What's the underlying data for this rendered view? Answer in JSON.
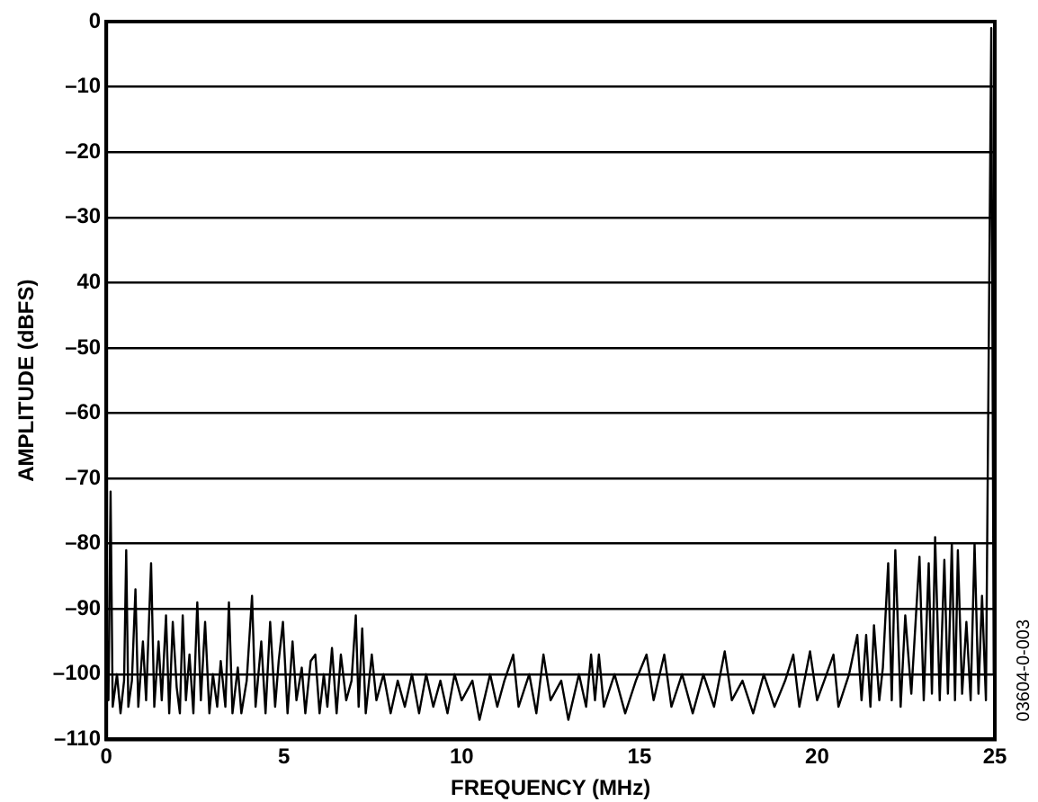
{
  "chart_data": {
    "type": "line",
    "xlabel": "FREQUENCY (MHz)",
    "ylabel": "AMPLITUDE (dBFS)",
    "xlim": [
      0,
      25
    ],
    "xticks": [
      0,
      5,
      10,
      15,
      20,
      25
    ],
    "ylim": [
      -110,
      0
    ],
    "yticks": [
      0,
      {
        "value": -10,
        "label": "–10"
      },
      {
        "value": -20,
        "label": "–20"
      },
      {
        "value": -30,
        "label": "–30"
      },
      {
        "value": -40,
        "label": "40"
      },
      {
        "value": -50,
        "label": "–50"
      },
      {
        "value": -60,
        "label": "–60"
      },
      {
        "value": -70,
        "label": "–70"
      },
      {
        "value": -80,
        "label": "–80"
      },
      {
        "value": -90,
        "label": "–90"
      },
      {
        "value": -100,
        "label": "–100"
      },
      {
        "value": -110,
        "label": "–110"
      }
    ],
    "grid": "y",
    "marker": "none",
    "line_style": "solid",
    "annotations": [
      "03604-0-003"
    ],
    "series": [
      {
        "color": "#000000",
        "x": [
          0,
          0.06,
          0.12,
          0.18,
          0.3,
          0.4,
          0.5,
          0.56,
          0.62,
          0.72,
          0.82,
          0.9,
          1.03,
          1.12,
          1.26,
          1.35,
          1.47,
          1.56,
          1.68,
          1.77,
          1.87,
          1.98,
          2.07,
          2.15,
          2.24,
          2.34,
          2.45,
          2.56,
          2.66,
          2.78,
          2.9,
          3.0,
          3.12,
          3.22,
          3.35,
          3.45,
          3.55,
          3.7,
          3.8,
          3.95,
          4.1,
          4.2,
          4.36,
          4.48,
          4.61,
          4.75,
          4.85,
          4.97,
          5.1,
          5.24,
          5.35,
          5.5,
          5.6,
          5.75,
          5.88,
          6.0,
          6.12,
          6.22,
          6.35,
          6.48,
          6.6,
          6.75,
          6.9,
          7.02,
          7.1,
          7.2,
          7.3,
          7.47,
          7.6,
          7.8,
          8.0,
          8.2,
          8.4,
          8.6,
          8.8,
          9.0,
          9.2,
          9.4,
          9.6,
          9.8,
          10.0,
          10.3,
          10.5,
          10.8,
          11.0,
          11.2,
          11.45,
          11.6,
          11.9,
          12.1,
          12.3,
          12.5,
          12.8,
          13.0,
          13.3,
          13.5,
          13.64,
          13.75,
          13.86,
          14.0,
          14.3,
          14.6,
          14.9,
          15.2,
          15.4,
          15.7,
          15.9,
          16.2,
          16.5,
          16.8,
          17.1,
          17.4,
          17.6,
          17.9,
          18.2,
          18.5,
          18.8,
          19.1,
          19.33,
          19.5,
          19.8,
          20.0,
          20.2,
          20.46,
          20.6,
          20.9,
          21.13,
          21.25,
          21.38,
          21.5,
          21.6,
          21.75,
          21.85,
          22.0,
          22.1,
          22.2,
          22.35,
          22.48,
          22.65,
          22.88,
          23.0,
          23.14,
          23.23,
          23.32,
          23.45,
          23.58,
          23.68,
          23.79,
          23.88,
          23.96,
          24.08,
          24.2,
          24.32,
          24.43,
          24.54,
          24.64,
          24.75,
          24.9,
          24.97
        ],
        "values": [
          -95,
          -104,
          -72,
          -105,
          -100,
          -106,
          -101,
          -81,
          -105,
          -101,
          -87,
          -105,
          -95,
          -104,
          -83,
          -105,
          -95,
          -104,
          -91,
          -106,
          -92,
          -102,
          -106,
          -91,
          -104,
          -97,
          -106,
          -89,
          -104,
          -92,
          -106,
          -100,
          -105,
          -98,
          -105,
          -89,
          -106,
          -99,
          -106,
          -101,
          -88,
          -105,
          -95,
          -106,
          -92,
          -105,
          -98,
          -92,
          -106,
          -95,
          -104,
          -99,
          -106,
          -98,
          -97,
          -106,
          -100,
          -105,
          -96,
          -106,
          -97,
          -104,
          -101,
          -91,
          -105,
          -93,
          -106,
          -97,
          -104,
          -100,
          -106,
          -101,
          -105,
          -100,
          -106,
          -100,
          -105,
          -101,
          -106,
          -100,
          -104,
          -101,
          -107,
          -100,
          -105,
          -101,
          -97,
          -105,
          -100,
          -106,
          -97,
          -104,
          -101,
          -107,
          -100,
          -105,
          -97,
          -104,
          -97,
          -105,
          -100,
          -106,
          -101,
          -97,
          -104,
          -97,
          -105,
          -100,
          -106,
          -100,
          -105,
          -96.5,
          -104,
          -101,
          -106,
          -100,
          -105,
          -101,
          -97,
          -105,
          -96.5,
          -104,
          -101,
          -97,
          -105,
          -100,
          -94,
          -104,
          -94,
          -105,
          -92.5,
          -104,
          -99,
          -83,
          -104,
          -81,
          -105,
          -91,
          -103,
          -82,
          -104,
          -83,
          -103,
          -79,
          -104,
          -82.5,
          -103,
          -80,
          -104,
          -81,
          -103,
          -92,
          -104,
          -80,
          -103,
          -88,
          -104,
          -1,
          -100
        ]
      }
    ]
  }
}
